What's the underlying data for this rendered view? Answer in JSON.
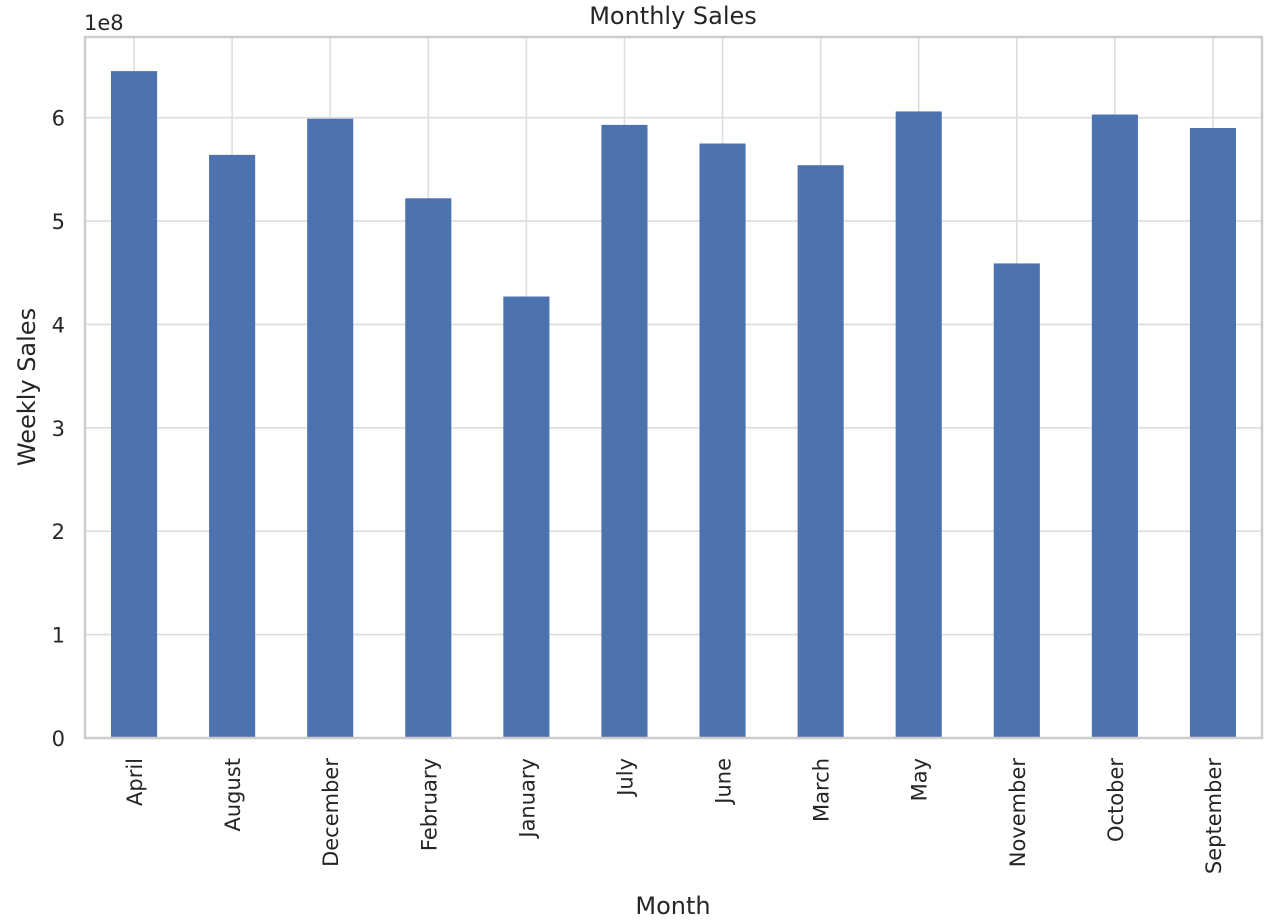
{
  "chart_data": {
    "type": "bar",
    "title": "Monthly Sales",
    "xlabel": "Month",
    "ylabel": "Weekly Sales",
    "y_offset_label": "1e8",
    "categories": [
      "April",
      "August",
      "December",
      "February",
      "January",
      "July",
      "June",
      "March",
      "May",
      "November",
      "October",
      "September"
    ],
    "values": [
      645000000.0,
      564000000.0,
      599000000.0,
      522000000.0,
      427000000.0,
      593000000.0,
      575000000.0,
      554000000.0,
      606000000.0,
      459000000.0,
      603000000.0,
      590000000.0
    ],
    "yticks": [
      0,
      1,
      2,
      3,
      4,
      5,
      6
    ],
    "ylim": [
      0,
      678000000.0
    ],
    "grid": true,
    "colors": {
      "bar": "#4c72b0",
      "grid": "#dddddd",
      "spine": "#cccccc",
      "text": "#262626"
    }
  }
}
